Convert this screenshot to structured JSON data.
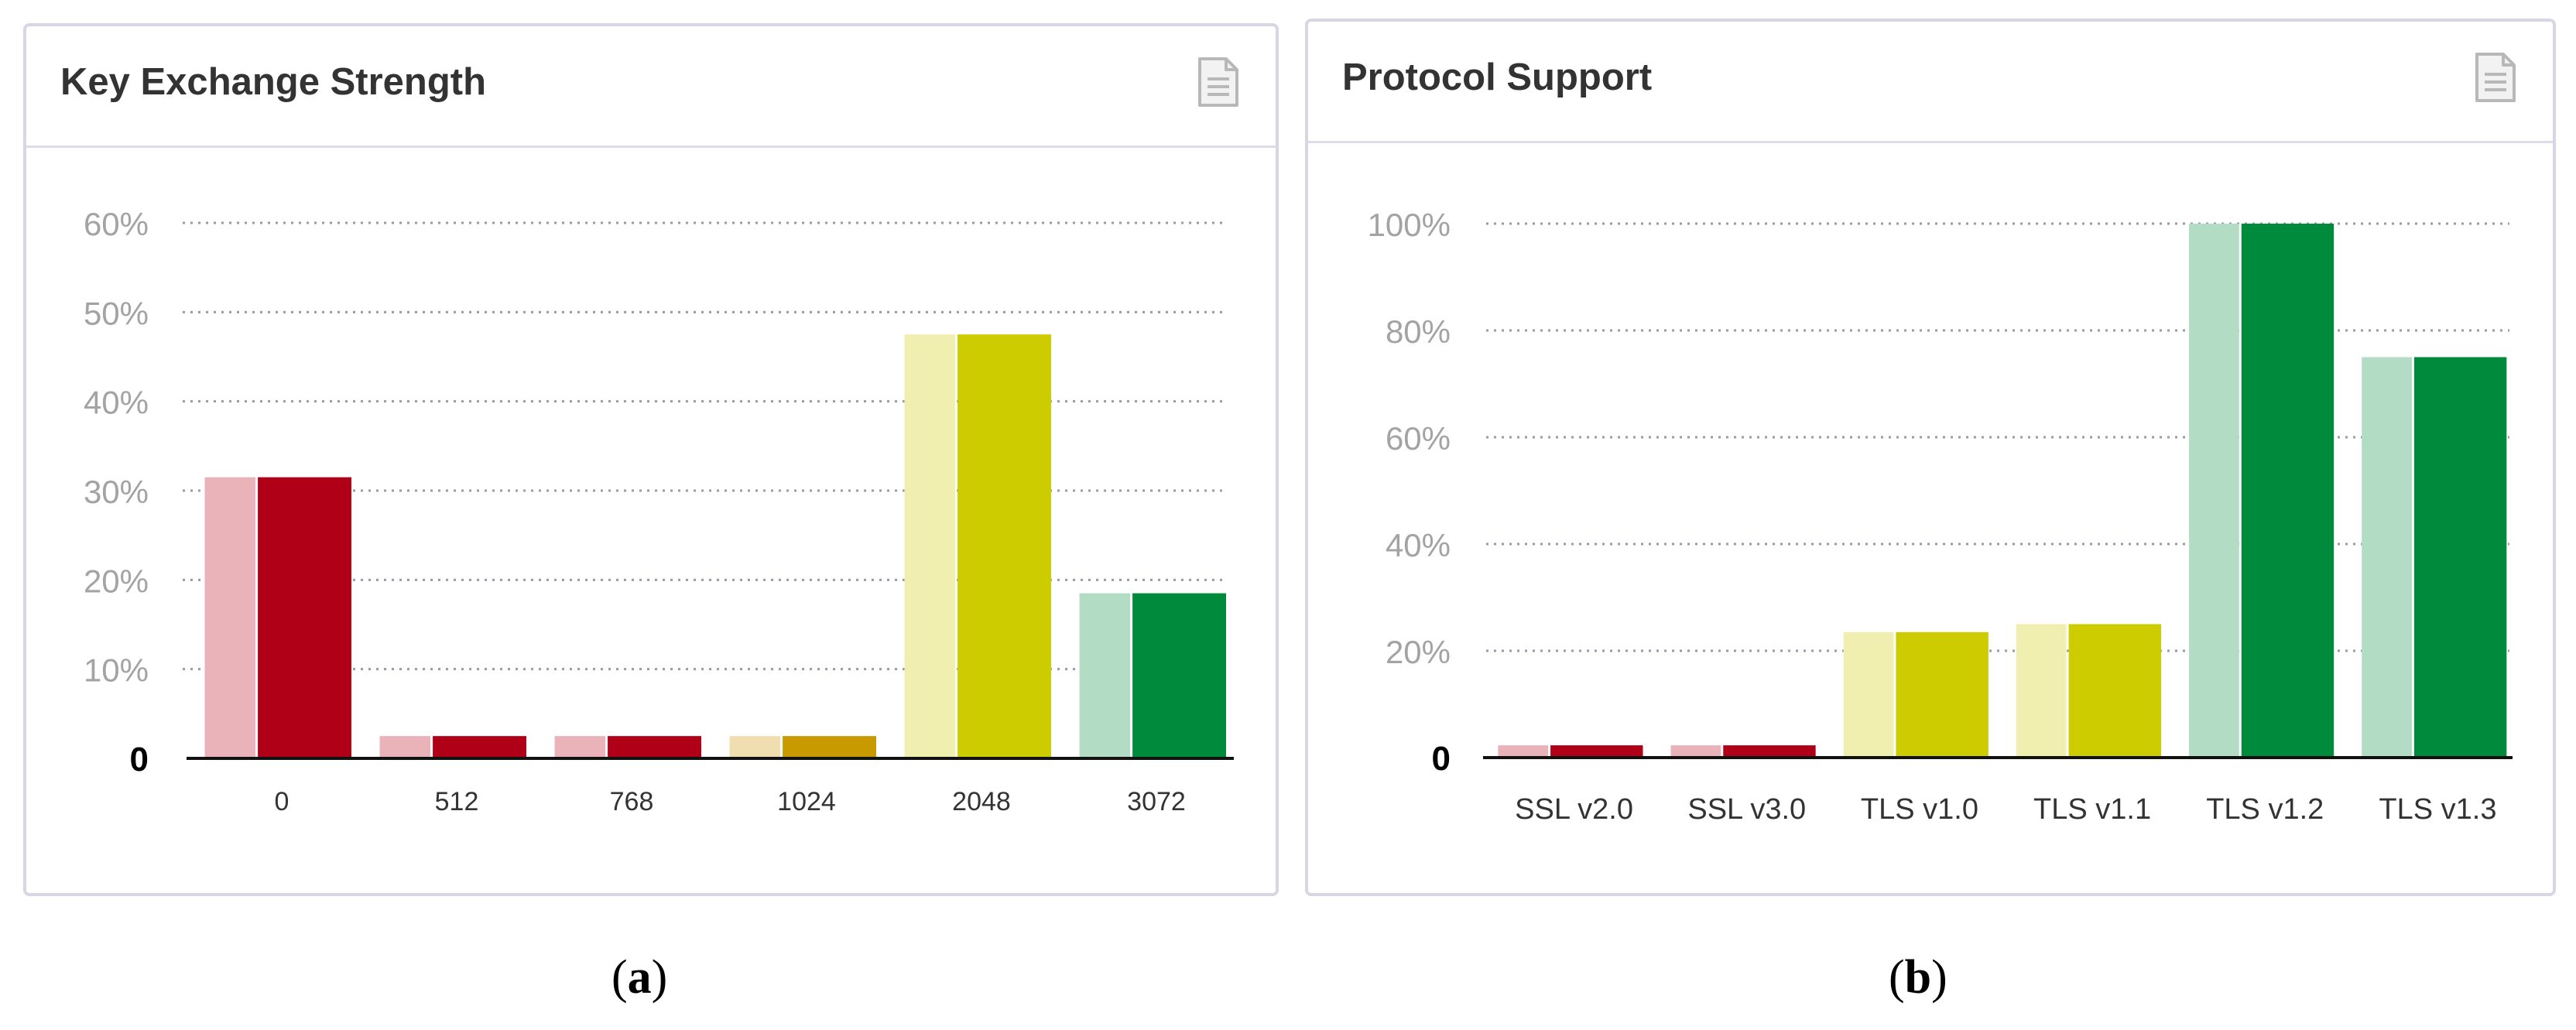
{
  "captions": {
    "a_letter": "a",
    "b_letter": "b"
  },
  "chart_data": [
    {
      "type": "bar",
      "title": "Key Exchange Strength",
      "icon": "document-icon",
      "categories": [
        "0",
        "512",
        "768",
        "1024",
        "2048",
        "3072"
      ],
      "values": [
        31.5,
        2.5,
        2.5,
        2.5,
        47.5,
        18.5
      ],
      "ylim": [
        0,
        60
      ],
      "yticks": [
        {
          "value": 0,
          "label": "0"
        },
        {
          "value": 10,
          "label": "10%"
        },
        {
          "value": 20,
          "label": "20%"
        },
        {
          "value": 30,
          "label": "30%"
        },
        {
          "value": 40,
          "label": "40%"
        },
        {
          "value": 50,
          "label": "50%"
        },
        {
          "value": 60,
          "label": "60%"
        }
      ],
      "grid": true,
      "colors": {
        "dark": [
          "#b00018",
          "#b00018",
          "#b00018",
          "#c89a00",
          "#cccc00",
          "#008a3c"
        ],
        "light": [
          "#e9b3b9",
          "#e9b3b9",
          "#e9b3b9",
          "#f0ddb0",
          "#f0efb0",
          "#b3dcc4"
        ]
      }
    },
    {
      "type": "bar",
      "title": "Protocol Support",
      "icon": "document-icon",
      "categories": [
        "SSL v2.0",
        "SSL v3.0",
        "TLS v1.0",
        "TLS v1.1",
        "TLS v1.2",
        "TLS v1.3"
      ],
      "values": [
        2.3,
        2.3,
        23.5,
        25,
        100,
        75
      ],
      "ylim": [
        0,
        100
      ],
      "yticks": [
        {
          "value": 0,
          "label": "0"
        },
        {
          "value": 20,
          "label": "20%"
        },
        {
          "value": 40,
          "label": "40%"
        },
        {
          "value": 60,
          "label": "60%"
        },
        {
          "value": 80,
          "label": "80%"
        },
        {
          "value": 100,
          "label": "100%"
        }
      ],
      "grid": true,
      "colors": {
        "dark": [
          "#b00018",
          "#b00018",
          "#cccc00",
          "#cccc00",
          "#008a3c",
          "#008a3c"
        ],
        "light": [
          "#e9b3b9",
          "#e9b3b9",
          "#f0efb0",
          "#f0efb0",
          "#b3dcc4",
          "#b3dcc4"
        ]
      }
    }
  ]
}
